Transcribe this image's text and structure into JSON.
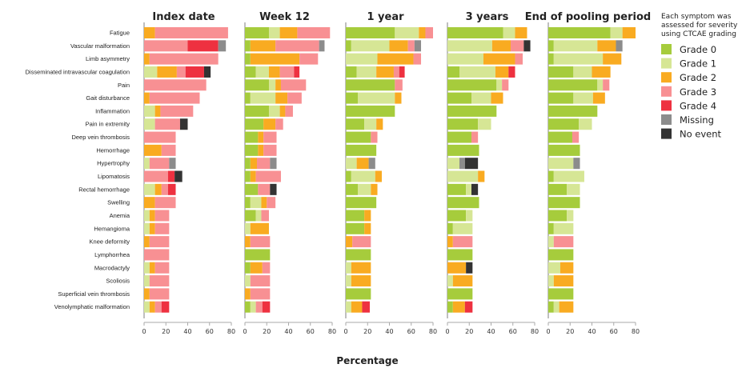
{
  "chart_data": {
    "type": "bar",
    "orientation": "horizontal",
    "stacked": true,
    "xlabel": "Percentage",
    "xlim": [
      0,
      80
    ],
    "xticks": [
      0,
      20,
      40,
      60,
      80
    ],
    "categories": [
      "Fatigue",
      "Vascular malformation",
      "Limb asymmetry",
      "Disseminated intravascular coagulation",
      "Pain",
      "Gait disturbance",
      "Inflammation",
      "Pain in extremity",
      "Deep vein thrombosis",
      "Hemorrhage",
      "Hypertrophy",
      "Lipomatosis",
      "Rectal hemorrhage",
      "Swelling",
      "Anemia",
      "Hemangioma",
      "Knee deformity",
      "Lymphorrhea",
      "Macrodactyly",
      "Scoliosis",
      "Superficial vein thrombosis",
      "Venolymphatic malformation"
    ],
    "legend": {
      "title": "Each symptom was assessed for severity using CTCAE grading",
      "position": "right",
      "items": [
        {
          "label": "Grade 0",
          "color": "#a6cc3c"
        },
        {
          "label": "Grade 1",
          "color": "#d6e695"
        },
        {
          "label": "Grade 2",
          "color": "#f9ab21"
        },
        {
          "label": "Grade 3",
          "color": "#f89093"
        },
        {
          "label": "Grade 4",
          "color": "#ee3140"
        },
        {
          "label": "Missing",
          "color": "#8c8c8c"
        },
        {
          "label": "No event",
          "color": "#333333"
        }
      ]
    },
    "panels": [
      {
        "title": "Index date",
        "rows": [
          [
            0,
            0,
            10,
            67,
            0,
            0,
            0
          ],
          [
            0,
            0,
            0,
            40,
            28,
            7,
            0
          ],
          [
            0,
            0,
            5,
            63,
            0,
            0,
            0
          ],
          [
            0,
            12,
            18,
            8,
            17,
            0,
            6
          ],
          [
            0,
            0,
            0,
            57,
            0,
            0,
            0
          ],
          [
            0,
            0,
            5,
            46,
            0,
            0,
            0
          ],
          [
            0,
            10,
            5,
            30,
            0,
            0,
            0
          ],
          [
            0,
            10,
            0,
            23,
            0,
            0,
            7
          ],
          [
            0,
            0,
            0,
            29,
            0,
            0,
            0
          ],
          [
            0,
            0,
            16,
            13,
            0,
            0,
            0
          ],
          [
            0,
            5,
            0,
            18,
            0,
            6,
            0
          ],
          [
            0,
            0,
            0,
            22,
            6,
            0,
            7
          ],
          [
            0,
            10,
            6,
            6,
            7,
            0,
            0
          ],
          [
            0,
            0,
            10,
            19,
            0,
            0,
            0
          ],
          [
            0,
            5,
            5,
            13,
            0,
            0,
            0
          ],
          [
            0,
            5,
            5,
            13,
            0,
            0,
            0
          ],
          [
            0,
            0,
            5,
            18,
            0,
            0,
            0
          ],
          [
            0,
            0,
            0,
            23,
            0,
            0,
            0
          ],
          [
            0,
            5,
            5,
            13,
            0,
            0,
            0
          ],
          [
            0,
            5,
            0,
            18,
            0,
            0,
            0
          ],
          [
            0,
            0,
            5,
            18,
            0,
            0,
            0
          ],
          [
            0,
            5,
            5,
            6,
            7,
            0,
            0
          ]
        ]
      },
      {
        "title": "Week 12",
        "rows": [
          [
            22,
            10,
            16,
            30,
            0,
            0,
            0
          ],
          [
            5,
            0,
            23,
            40,
            0,
            5,
            0
          ],
          [
            5,
            0,
            45,
            17,
            0,
            0,
            0
          ],
          [
            10,
            12,
            10,
            13,
            5,
            0,
            0
          ],
          [
            22,
            6,
            5,
            23,
            0,
            0,
            0
          ],
          [
            5,
            23,
            11,
            13,
            0,
            0,
            0
          ],
          [
            22,
            10,
            5,
            7,
            0,
            0,
            0
          ],
          [
            17,
            0,
            11,
            7,
            0,
            0,
            0
          ],
          [
            12,
            0,
            5,
            12,
            0,
            0,
            0
          ],
          [
            12,
            0,
            5,
            12,
            0,
            0,
            0
          ],
          [
            5,
            0,
            6,
            12,
            0,
            6,
            0
          ],
          [
            5,
            0,
            5,
            23,
            0,
            0,
            0
          ],
          [
            12,
            0,
            0,
            11,
            0,
            0,
            6
          ],
          [
            5,
            10,
            5,
            8,
            0,
            0,
            0
          ],
          [
            10,
            5,
            0,
            7,
            0,
            0,
            0
          ],
          [
            0,
            5,
            17,
            0,
            0,
            0,
            0
          ],
          [
            0,
            0,
            5,
            18,
            0,
            0,
            0
          ],
          [
            23,
            0,
            0,
            0,
            0,
            0,
            0
          ],
          [
            5,
            0,
            11,
            7,
            0,
            0,
            0
          ],
          [
            0,
            5,
            0,
            18,
            0,
            0,
            0
          ],
          [
            0,
            0,
            5,
            18,
            0,
            0,
            0
          ],
          [
            5,
            5,
            0,
            6,
            7,
            0,
            0
          ]
        ]
      },
      {
        "title": "1 year",
        "rows": [
          [
            45,
            22,
            6,
            7,
            0,
            0,
            0
          ],
          [
            5,
            35,
            17,
            6,
            0,
            6,
            0
          ],
          [
            0,
            29,
            33,
            7,
            0,
            0,
            0
          ],
          [
            10,
            18,
            16,
            5,
            5,
            0,
            0
          ],
          [
            45,
            0,
            0,
            7,
            0,
            0,
            0
          ],
          [
            11,
            34,
            6,
            0,
            0,
            0,
            0
          ],
          [
            45,
            0,
            0,
            0,
            0,
            0,
            0
          ],
          [
            17,
            11,
            6,
            0,
            0,
            0,
            0
          ],
          [
            23,
            0,
            0,
            6,
            0,
            0,
            0
          ],
          [
            28,
            0,
            0,
            0,
            0,
            0,
            0
          ],
          [
            0,
            10,
            11,
            0,
            0,
            6,
            0
          ],
          [
            5,
            22,
            6,
            0,
            0,
            0,
            0
          ],
          [
            11,
            12,
            6,
            0,
            0,
            0,
            0
          ],
          [
            28,
            0,
            0,
            0,
            0,
            0,
            0
          ],
          [
            17,
            0,
            6,
            0,
            0,
            0,
            0
          ],
          [
            17,
            0,
            6,
            0,
            0,
            0,
            0
          ],
          [
            0,
            0,
            6,
            17,
            0,
            0,
            0
          ],
          [
            23,
            0,
            0,
            0,
            0,
            0,
            0
          ],
          [
            0,
            5,
            18,
            0,
            0,
            0,
            0
          ],
          [
            0,
            5,
            18,
            0,
            0,
            0,
            0
          ],
          [
            23,
            0,
            0,
            0,
            0,
            0,
            0
          ],
          [
            0,
            5,
            10,
            0,
            7,
            0,
            0
          ]
        ]
      },
      {
        "title": "3 years",
        "rows": [
          [
            51,
            11,
            11,
            0,
            0,
            0,
            0
          ],
          [
            0,
            41,
            17,
            12,
            0,
            0,
            6
          ],
          [
            0,
            33,
            29,
            7,
            0,
            0,
            0
          ],
          [
            11,
            33,
            12,
            0,
            6,
            0,
            0
          ],
          [
            45,
            5,
            0,
            6,
            0,
            0,
            0
          ],
          [
            22,
            18,
            11,
            0,
            0,
            0,
            0
          ],
          [
            45,
            0,
            0,
            0,
            0,
            0,
            0
          ],
          [
            28,
            12,
            0,
            0,
            0,
            0,
            0
          ],
          [
            22,
            0,
            0,
            6,
            0,
            0,
            0
          ],
          [
            29,
            0,
            0,
            0,
            0,
            0,
            0
          ],
          [
            0,
            11,
            0,
            0,
            0,
            5,
            12
          ],
          [
            0,
            28,
            6,
            0,
            0,
            0,
            0
          ],
          [
            17,
            5,
            0,
            0,
            0,
            0,
            6
          ],
          [
            29,
            0,
            0,
            0,
            0,
            0,
            0
          ],
          [
            17,
            6,
            0,
            0,
            0,
            0,
            0
          ],
          [
            5,
            18,
            0,
            0,
            0,
            0,
            0
          ],
          [
            0,
            0,
            5,
            18,
            0,
            0,
            0
          ],
          [
            23,
            0,
            0,
            0,
            0,
            0,
            0
          ],
          [
            0,
            0,
            17,
            0,
            0,
            0,
            6
          ],
          [
            0,
            5,
            18,
            0,
            0,
            0,
            0
          ],
          [
            23,
            0,
            0,
            0,
            0,
            0,
            0
          ],
          [
            5,
            0,
            11,
            0,
            7,
            0,
            0
          ]
        ]
      },
      {
        "title": "End of pooling period",
        "rows": [
          [
            57,
            11,
            12,
            0,
            0,
            0,
            0
          ],
          [
            5,
            40,
            17,
            0,
            0,
            6,
            0
          ],
          [
            5,
            45,
            17,
            0,
            0,
            0,
            0
          ],
          [
            23,
            17,
            17,
            0,
            0,
            0,
            0
          ],
          [
            45,
            5,
            0,
            6,
            0,
            0,
            0
          ],
          [
            23,
            18,
            11,
            0,
            0,
            0,
            0
          ],
          [
            45,
            0,
            0,
            0,
            0,
            0,
            0
          ],
          [
            28,
            12,
            0,
            0,
            0,
            0,
            0
          ],
          [
            22,
            0,
            0,
            6,
            0,
            0,
            0
          ],
          [
            29,
            0,
            0,
            0,
            0,
            0,
            0
          ],
          [
            0,
            23,
            0,
            0,
            0,
            6,
            0
          ],
          [
            5,
            28,
            0,
            0,
            0,
            0,
            0
          ],
          [
            17,
            12,
            0,
            0,
            0,
            0,
            0
          ],
          [
            29,
            0,
            0,
            0,
            0,
            0,
            0
          ],
          [
            17,
            6,
            0,
            0,
            0,
            0,
            0
          ],
          [
            5,
            18,
            0,
            0,
            0,
            0,
            0
          ],
          [
            0,
            5,
            0,
            18,
            0,
            0,
            0
          ],
          [
            23,
            0,
            0,
            0,
            0,
            0,
            0
          ],
          [
            0,
            11,
            12,
            0,
            0,
            0,
            0
          ],
          [
            0,
            5,
            18,
            0,
            0,
            0,
            0
          ],
          [
            23,
            0,
            0,
            0,
            0,
            0,
            0
          ],
          [
            5,
            5,
            13,
            0,
            0,
            0,
            0
          ]
        ]
      }
    ]
  }
}
